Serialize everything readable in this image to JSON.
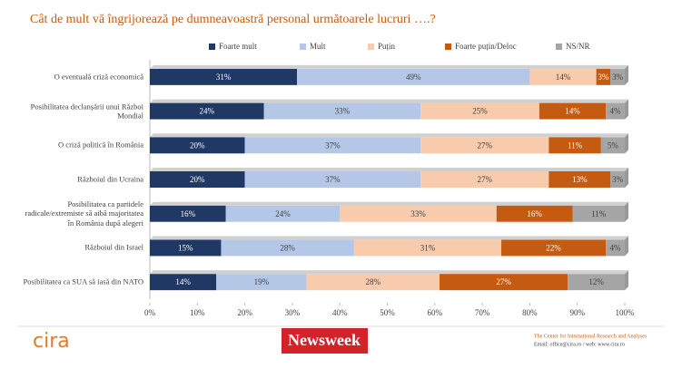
{
  "chart_data": {
    "type": "stacked-bar-horizontal",
    "title": "Cât de mult vă îngrijorează pe dumneavoastră personal următoarele lucruri ….?",
    "categories": [
      "O eventuală criză economică",
      "Posibilitatea declanșării unui Război Mondial",
      "O criză politică în România",
      "Războiul din Ucraina",
      "Posibilitatea ca partidele radicale/extremiste să aibă majoritatea în România după alegeri",
      "Războiul din Israel",
      "Posibilitatea ca SUA să iasă din NATO"
    ],
    "series": [
      {
        "name": "Foarte mult",
        "color": "#1f3864",
        "values": [
          31,
          24,
          20,
          20,
          16,
          15,
          14
        ],
        "value_labels": [
          "31%",
          "24%",
          "20%",
          "20%",
          "16%",
          "15%",
          "14%"
        ]
      },
      {
        "name": "Mult",
        "color": "#b4c7e7",
        "values": [
          49,
          33,
          37,
          37,
          24,
          28,
          19
        ],
        "value_labels": [
          "49%",
          "33%",
          "37%",
          "37%",
          "24%",
          "28%",
          "19%"
        ]
      },
      {
        "name": "Puțin",
        "color": "#f8cbad",
        "values": [
          14,
          25,
          27,
          27,
          33,
          31,
          28
        ],
        "value_labels": [
          "14%",
          "25%",
          "27%",
          "27%",
          "33%",
          "31%",
          "28%"
        ]
      },
      {
        "name": "Foarte puțin/Deloc",
        "color": "#c55a11",
        "values": [
          3,
          14,
          11,
          13,
          16,
          22,
          27
        ],
        "value_labels": [
          "3%",
          "14%",
          "11%",
          "13%",
          "16%",
          "22%",
          "27%"
        ]
      },
      {
        "name": "NS/NR",
        "color": "#a5a5a5",
        "values": [
          3,
          4,
          5,
          3,
          11,
          4,
          12
        ],
        "value_labels": [
          "3%",
          "4%",
          "5%",
          "3%",
          "11%",
          "4%",
          "12%"
        ]
      }
    ],
    "xlim": [
      0,
      100
    ],
    "xticks": [
      {
        "value": 0,
        "label": "0%"
      },
      {
        "value": 10,
        "label": "10%"
      },
      {
        "value": 20,
        "label": "20%"
      },
      {
        "value": 30,
        "label": "30%"
      },
      {
        "value": 40,
        "label": "40%"
      },
      {
        "value": 50,
        "label": "50%"
      },
      {
        "value": 60,
        "label": "60%"
      },
      {
        "value": 70,
        "label": "70%"
      },
      {
        "value": 80,
        "label": "80%"
      },
      {
        "value": 90,
        "label": "90%"
      },
      {
        "value": 100,
        "label": "100%"
      }
    ],
    "legend": "top"
  },
  "footer": {
    "logo": "cira",
    "brand": "Newsweek",
    "organization": "The Center for International Research and Analyses",
    "contact": "Email: office@cira.ro / web: www.cira.ro"
  }
}
